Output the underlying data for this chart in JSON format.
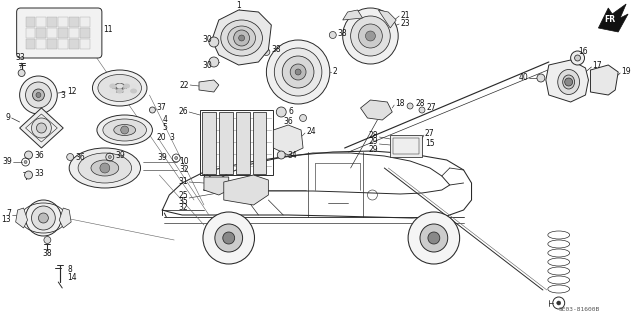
{
  "bg_color": "#ffffff",
  "fig_width": 6.4,
  "fig_height": 3.19,
  "watermark": "SE03-81600B",
  "line_color": "#2a2a2a",
  "line_width": 0.7,
  "car": {
    "body_x": [
      155,
      165,
      175,
      205,
      245,
      290,
      340,
      385,
      420,
      445,
      460,
      468,
      468,
      460,
      420,
      385,
      340,
      290,
      245,
      205,
      175,
      165,
      155
    ],
    "body_y": [
      205,
      190,
      178,
      165,
      158,
      152,
      148,
      150,
      155,
      162,
      172,
      185,
      200,
      210,
      215,
      215,
      213,
      212,
      212,
      213,
      215,
      210,
      205
    ],
    "roof_x": [
      205,
      215,
      230,
      255,
      285,
      320,
      355,
      385,
      410,
      430,
      440,
      445,
      440,
      410,
      385,
      355,
      320,
      285,
      255,
      230,
      215,
      205
    ],
    "roof_y": [
      188,
      180,
      172,
      163,
      157,
      152,
      152,
      155,
      160,
      167,
      175,
      185,
      190,
      193,
      193,
      192,
      192,
      192,
      192,
      192,
      190,
      188
    ]
  }
}
